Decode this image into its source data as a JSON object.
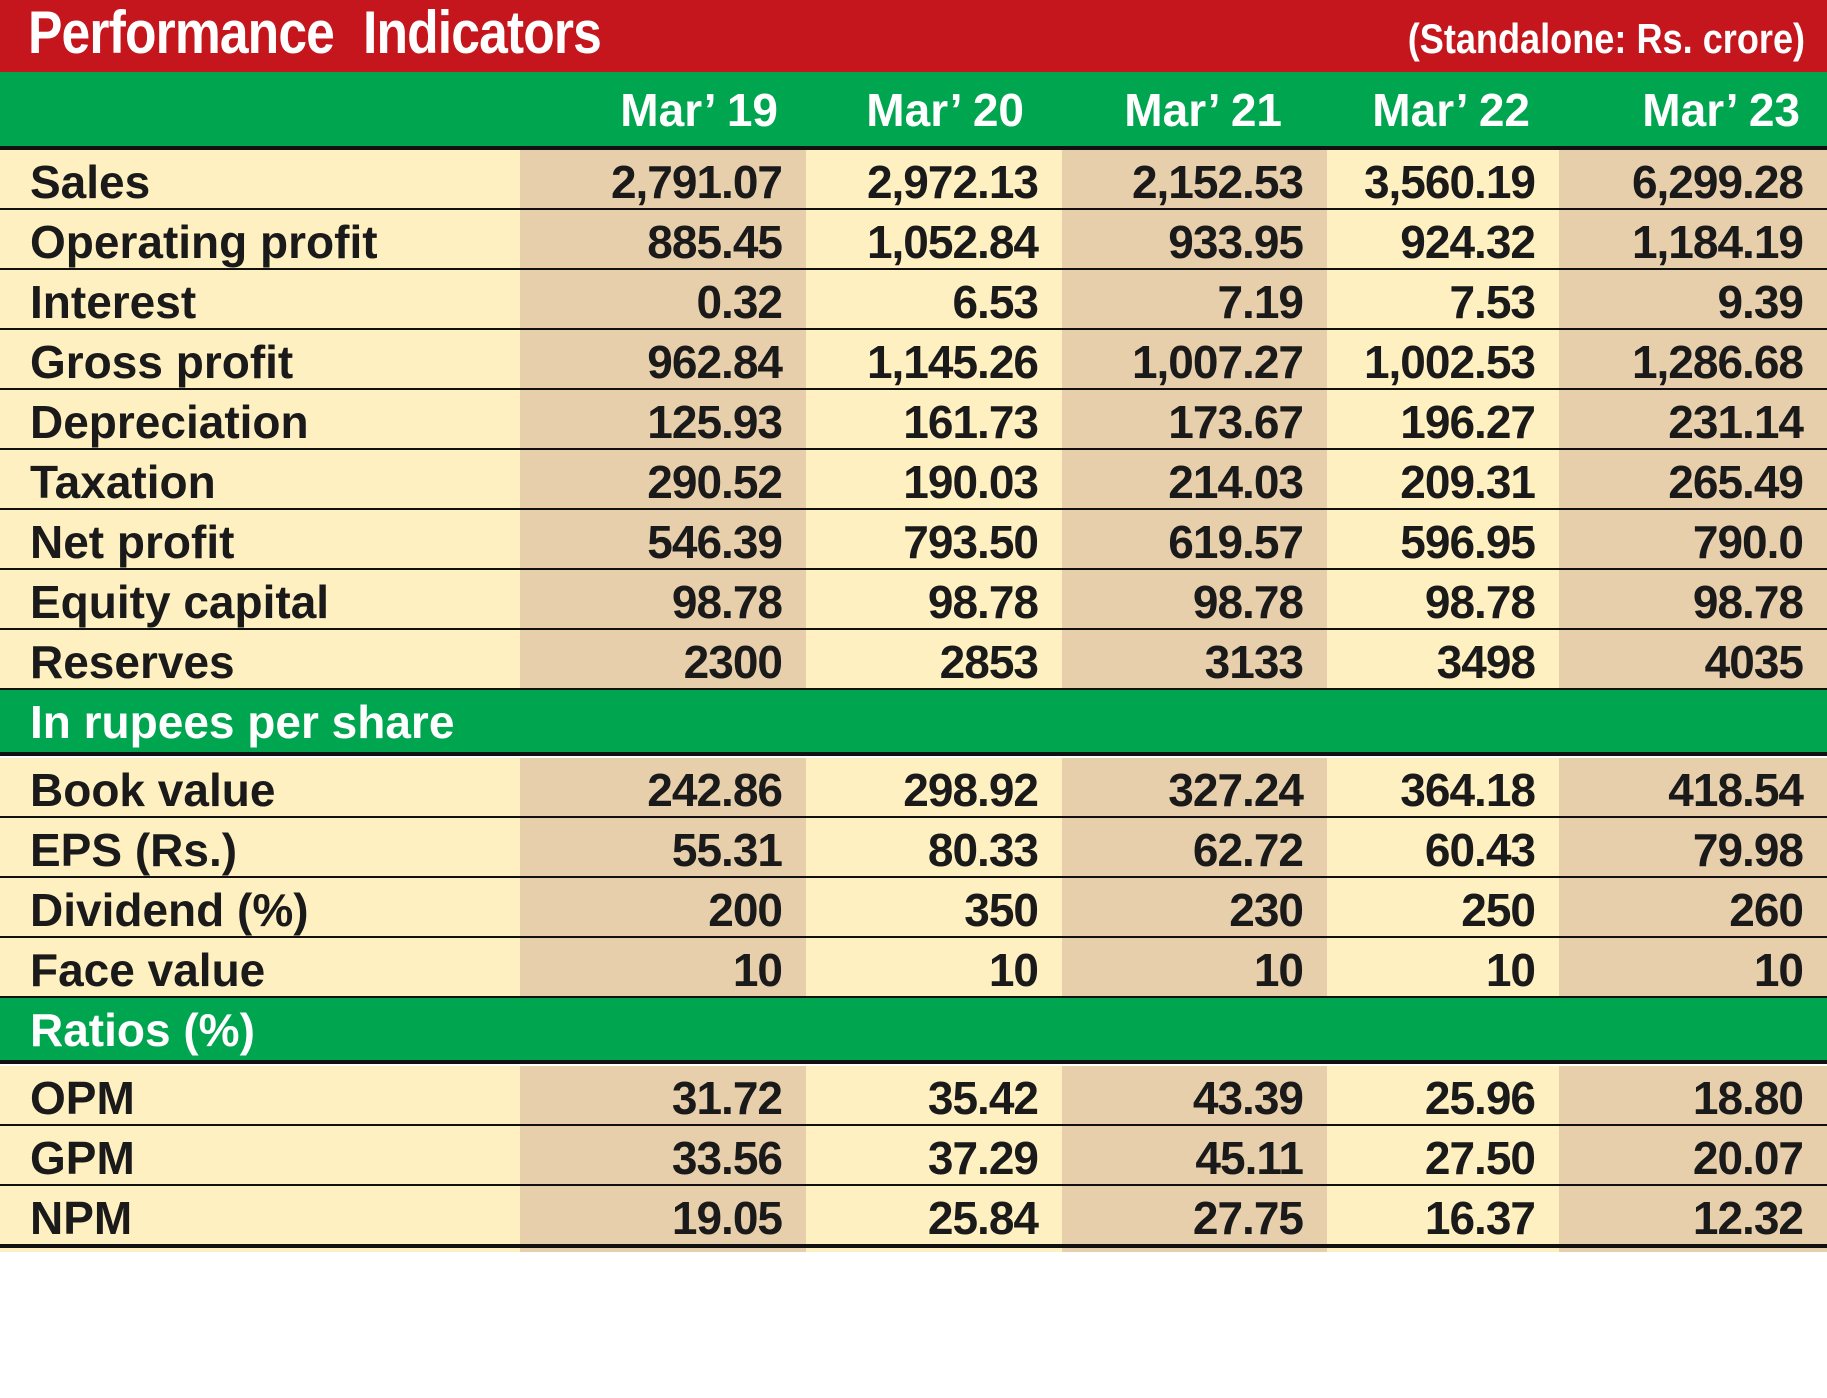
{
  "chart_data": {
    "type": "table",
    "title": "Performance  Indicators",
    "subtitle": "(Standalone: Rs. crore)",
    "columns": [
      "Mar’ 19",
      "Mar’ 20",
      "Mar’ 21",
      "Mar’ 22",
      "Mar’ 23"
    ],
    "sections": [
      {
        "name": "",
        "rows": [
          {
            "label": "Sales",
            "values": [
              "2,791.07",
              "2,972.13",
              "2,152.53",
              "3,560.19",
              "6,299.28"
            ]
          },
          {
            "label": "Operating profit",
            "values": [
              "885.45",
              "1,052.84",
              "933.95",
              "924.32",
              "1,184.19"
            ]
          },
          {
            "label": "Interest",
            "values": [
              "0.32",
              "6.53",
              "7.19",
              "7.53",
              "9.39"
            ]
          },
          {
            "label": "Gross profit",
            "values": [
              "962.84",
              "1,145.26",
              "1,007.27",
              "1,002.53",
              "1,286.68"
            ]
          },
          {
            "label": "Depreciation",
            "values": [
              "125.93",
              "161.73",
              "173.67",
              "196.27",
              "231.14"
            ]
          },
          {
            "label": "Taxation",
            "values": [
              "290.52",
              "190.03",
              "214.03",
              "209.31",
              "265.49"
            ]
          },
          {
            "label": "Net profit",
            "values": [
              "546.39",
              "793.50",
              "619.57",
              "596.95",
              "790.0"
            ]
          },
          {
            "label": "Equity capital",
            "values": [
              "98.78",
              "98.78",
              "98.78",
              "98.78",
              "98.78"
            ]
          },
          {
            "label": "Reserves",
            "values": [
              "2300",
              "2853",
              "3133",
              "3498",
              "4035"
            ]
          }
        ]
      },
      {
        "name": "In rupees per share",
        "rows": [
          {
            "label": "Book value",
            "values": [
              "242.86",
              "298.92",
              "327.24",
              "364.18",
              "418.54"
            ]
          },
          {
            "label": "EPS (Rs.)",
            "values": [
              "55.31",
              "80.33",
              "62.72",
              "60.43",
              "79.98"
            ]
          },
          {
            "label": "Dividend (%)",
            "values": [
              "200",
              "350",
              "230",
              "250",
              "260"
            ]
          },
          {
            "label": "Face  value",
            "values": [
              "10",
              "10",
              "10",
              "10",
              "10"
            ]
          }
        ]
      },
      {
        "name": "Ratios (%)",
        "rows": [
          {
            "label": "OPM",
            "values": [
              "31.72",
              "35.42",
              "43.39",
              "25.96",
              "18.80"
            ]
          },
          {
            "label": "GPM",
            "values": [
              "33.56",
              "37.29",
              "45.11",
              "27.50",
              "20.07"
            ]
          },
          {
            "label": "NPM",
            "values": [
              "19.05",
              "25.84",
              "27.75",
              "16.37",
              "12.32"
            ]
          }
        ]
      }
    ],
    "colors": {
      "title_bar": "#c4161c",
      "header_bar": "#00a550",
      "cell_light": "#fff0c1",
      "cell_dark": "#e8cfab",
      "divider": "#111111"
    }
  }
}
